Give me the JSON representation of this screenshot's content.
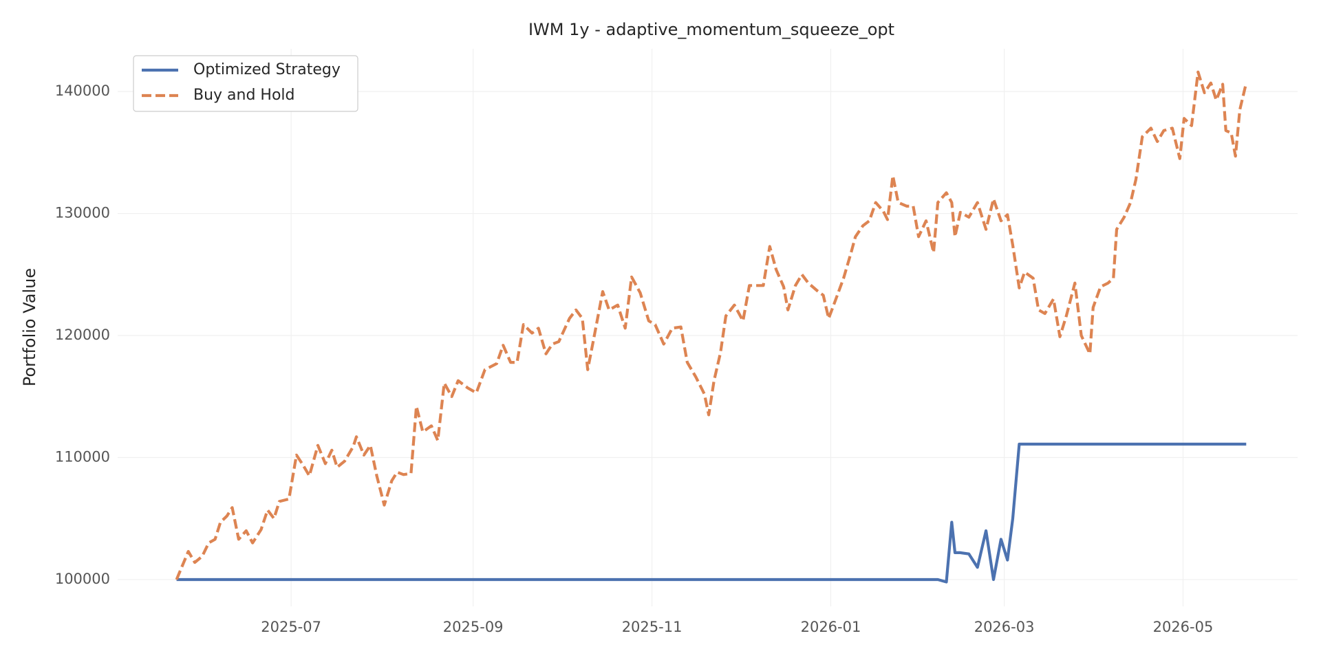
{
  "chart_data": {
    "type": "line",
    "title": "IWM 1y - adaptive_momentum_squeeze_opt",
    "y_label": "Portfolio Value",
    "grid": true,
    "legend": "upper left",
    "xlim": [
      2025.334,
      2026.436
    ],
    "ylim": [
      97800,
      143500
    ],
    "xticks": [
      {
        "value": 2025.496,
        "label": "2025-07"
      },
      {
        "value": 2025.666,
        "label": "2025-09"
      },
      {
        "value": 2025.833,
        "label": "2025-11"
      },
      {
        "value": 2026.0,
        "label": "2026-01"
      },
      {
        "value": 2026.162,
        "label": "2026-03"
      },
      {
        "value": 2026.329,
        "label": "2026-05"
      }
    ],
    "yticks": [
      100000,
      110000,
      120000,
      130000,
      140000
    ],
    "x": [
      2025.389,
      2025.4,
      2025.406,
      2025.413,
      2025.419,
      2025.425,
      2025.43,
      2025.436,
      2025.441,
      2025.447,
      2025.454,
      2025.46,
      2025.468,
      2025.474,
      2025.48,
      2025.485,
      2025.494,
      2025.501,
      2025.507,
      2025.513,
      2025.521,
      2025.528,
      2025.534,
      2025.539,
      2025.546,
      2025.554,
      2025.557,
      2025.564,
      2025.57,
      2025.576,
      2025.583,
      2025.59,
      2025.595,
      2025.601,
      2025.608,
      2025.613,
      2025.619,
      2025.627,
      2025.633,
      2025.639,
      2025.646,
      2025.652,
      2025.661,
      2025.669,
      2025.677,
      2025.688,
      2025.694,
      2025.701,
      2025.707,
      2025.713,
      2025.721,
      2025.727,
      2025.734,
      2025.74,
      2025.746,
      2025.756,
      2025.762,
      2025.768,
      2025.773,
      2025.779,
      2025.787,
      2025.793,
      2025.801,
      2025.808,
      2025.814,
      2025.822,
      2025.83,
      2025.836,
      2025.844,
      2025.852,
      2025.86,
      2025.866,
      2025.874,
      2025.882,
      2025.886,
      2025.891,
      2025.897,
      2025.902,
      2025.91,
      2025.918,
      2025.924,
      2025.937,
      2025.943,
      2025.949,
      2025.956,
      2025.96,
      2025.967,
      2025.973,
      2025.979,
      2025.987,
      2025.993,
      2025.998,
      2026.004,
      2026.012,
      2026.019,
      2026.023,
      2026.03,
      2026.036,
      2026.042,
      2026.049,
      2026.053,
      2026.058,
      2026.063,
      2026.071,
      2026.077,
      2026.082,
      2026.089,
      2026.096,
      2026.1,
      2026.108,
      2026.113,
      2026.116,
      2026.121,
      2026.129,
      2026.137,
      2026.145,
      2026.152,
      2026.159,
      2026.165,
      2026.17,
      2026.176,
      2026.181,
      2026.189,
      2026.194,
      2026.2,
      2026.208,
      2026.214,
      2026.22,
      2026.228,
      2026.234,
      2026.242,
      2026.245,
      2026.252,
      2026.259,
      2026.264,
      2026.267,
      2026.274,
      2026.28,
      2026.285,
      2026.291,
      2026.299,
      2026.305,
      2026.311,
      2026.319,
      2026.326,
      2026.33,
      2026.337,
      2026.343,
      2026.349,
      2026.355,
      2026.36,
      2026.366,
      2026.369,
      2026.374,
      2026.378,
      2026.382,
      2026.388
    ],
    "series": [
      {
        "name": "Optimized Strategy",
        "color": "#4c72b0",
        "dash": false,
        "values": [
          100000,
          100000,
          100000,
          100000,
          100000,
          100000,
          100000,
          100000,
          100000,
          100000,
          100000,
          100000,
          100000,
          100000,
          100000,
          100000,
          100000,
          100000,
          100000,
          100000,
          100000,
          100000,
          100000,
          100000,
          100000,
          100000,
          100000,
          100000,
          100000,
          100000,
          100000,
          100000,
          100000,
          100000,
          100000,
          100000,
          100000,
          100000,
          100000,
          100000,
          100000,
          100000,
          100000,
          100000,
          100000,
          100000,
          100000,
          100000,
          100000,
          100000,
          100000,
          100000,
          100000,
          100000,
          100000,
          100000,
          100000,
          100000,
          100000,
          100000,
          100000,
          100000,
          100000,
          100000,
          100000,
          100000,
          100000,
          100000,
          100000,
          100000,
          100000,
          100000,
          100000,
          100000,
          100000,
          100000,
          100000,
          100000,
          100000,
          100000,
          100000,
          100000,
          100000,
          100000,
          100000,
          100000,
          100000,
          100000,
          100000,
          100000,
          100000,
          100000,
          100000,
          100000,
          100000,
          100000,
          100000,
          100000,
          100000,
          100000,
          100000,
          100000,
          100000,
          100000,
          100000,
          100000,
          100000,
          100000,
          100000,
          99800,
          104700,
          102200,
          102200,
          102100,
          101000,
          104000,
          100000,
          103300,
          101600,
          105000,
          111100,
          111100,
          111100,
          111100,
          111100,
          111100,
          111100,
          111100,
          111100,
          111100,
          111100,
          111100,
          111100,
          111100,
          111100,
          111100,
          111100,
          111100,
          111100,
          111100,
          111100,
          111100,
          111100,
          111100,
          111100,
          111100,
          111100,
          111100,
          111100,
          111100,
          111100,
          111100,
          111100,
          111100,
          111100,
          111100,
          111100
        ]
      },
      {
        "name": "Buy and Hold",
        "color": "#dd8452",
        "dash": true,
        "values": [
          100000,
          102300,
          101400,
          101900,
          103000,
          103300,
          104700,
          105200,
          105900,
          103300,
          104000,
          103000,
          104100,
          105700,
          105000,
          106400,
          106600,
          110200,
          109400,
          108500,
          111000,
          109500,
          110600,
          109200,
          109700,
          110900,
          111700,
          110200,
          111000,
          108500,
          106100,
          108100,
          108800,
          108600,
          108700,
          114200,
          112100,
          112600,
          111400,
          116100,
          115000,
          116300,
          115700,
          115300,
          117200,
          117700,
          119200,
          117800,
          117800,
          120900,
          120200,
          120600,
          118500,
          119300,
          119500,
          121400,
          122100,
          121400,
          117200,
          119900,
          123600,
          122100,
          122500,
          120600,
          124800,
          123500,
          121200,
          120900,
          119300,
          120600,
          120700,
          117800,
          116600,
          115200,
          113500,
          116300,
          118600,
          121600,
          122500,
          121200,
          124100,
          124100,
          127300,
          125400,
          124000,
          122100,
          124100,
          125000,
          124300,
          123700,
          123300,
          121400,
          122800,
          124700,
          126800,
          128100,
          129000,
          129400,
          130900,
          130200,
          129500,
          133100,
          130900,
          130600,
          130600,
          128100,
          129400,
          126800,
          130900,
          131700,
          130900,
          128100,
          130100,
          129700,
          130900,
          128700,
          131200,
          129400,
          129900,
          127400,
          123900,
          125200,
          124700,
          122100,
          121800,
          123000,
          119900,
          121600,
          124300,
          120000,
          118500,
          122300,
          124000,
          124300,
          124700,
          128700,
          129700,
          130900,
          132800,
          136300,
          137000,
          135900,
          136800,
          137000,
          134500,
          137800,
          137200,
          141600,
          139900,
          140700,
          139300,
          140600,
          136800,
          136600,
          134700,
          138500,
          140700
        ]
      }
    ]
  }
}
